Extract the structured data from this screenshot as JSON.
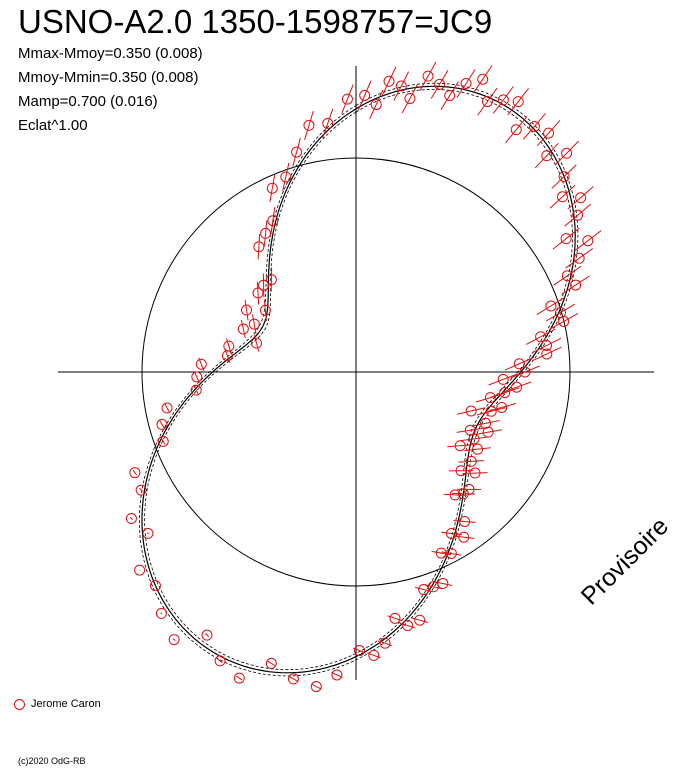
{
  "title": "USNO-A2.0 1350-1598757=JC9",
  "params": [
    "Mmax-Mmoy=0.350 (0.008)",
    "Mmoy-Mmin=0.350 (0.008)",
    "Mamp=0.700 (0.016)",
    "Eclat^1.00"
  ],
  "legend": {
    "label": "Jerome Caron",
    "color": "#e01010"
  },
  "watermark": "Provisoire",
  "copyright": "(c)2020 OdG-RB",
  "chart_data": {
    "type": "scatter",
    "projection": "polar",
    "reference_circle_radius": 1.0,
    "model_curve": {
      "description_ref": "params",
      "components": [
        {
          "harmonic": 1,
          "cos": -0.05,
          "sin": 0.05
        },
        {
          "harmonic": 2,
          "cos": 0.28,
          "sin": 0.35
        }
      ],
      "band": 0.015
    },
    "series": [
      {
        "name": "Jerome Caron",
        "color": "#e01010",
        "phase": [
          0.005,
          0.012,
          0.018,
          0.025,
          0.031,
          0.038,
          0.045,
          0.052,
          0.058,
          0.065,
          0.072,
          0.079,
          0.086,
          0.093,
          0.1,
          0.108,
          0.115,
          0.122,
          0.13,
          0.138,
          0.145,
          0.152,
          0.16,
          0.168,
          0.175,
          0.182,
          0.19,
          0.198,
          0.205,
          0.212,
          0.22,
          0.228,
          0.235,
          0.242,
          0.25,
          0.258,
          0.265,
          0.272,
          0.28,
          0.288,
          0.295,
          0.302,
          0.31,
          0.318,
          0.325,
          0.332,
          0.34,
          0.348,
          0.355,
          0.362,
          0.37,
          0.378,
          0.385,
          0.392,
          0.4,
          0.408,
          0.415,
          0.423,
          0.43,
          0.438,
          0.445,
          0.452,
          0.46,
          0.468,
          0.475,
          0.483,
          0.49,
          0.498,
          0.51,
          0.52,
          0.532,
          0.545,
          0.558,
          0.57,
          0.582,
          0.595,
          0.608,
          0.62,
          0.632,
          0.645,
          0.658,
          0.67,
          0.682,
          0.695,
          0.708,
          0.72,
          0.732,
          0.745,
          0.758,
          0.77,
          0.782,
          0.795,
          0.808,
          0.82,
          0.832,
          0.845,
          0.858,
          0.87,
          0.882,
          0.895,
          0.908,
          0.92,
          0.932,
          0.945,
          0.958,
          0.97,
          0.982,
          0.995
        ],
        "residual": [
          0.04,
          -0.03,
          0.06,
          0.02,
          -0.05,
          0.05,
          0.01,
          -0.04,
          0.03,
          0.07,
          -0.02,
          0.02,
          0.05,
          -0.06,
          0.01,
          0.04,
          -0.03,
          0.06,
          0.0,
          -0.04,
          0.05,
          0.02,
          -0.05,
          0.07,
          0.03,
          -0.02,
          0.04,
          -0.06,
          0.01,
          0.05,
          -0.03,
          0.03,
          0.06,
          -0.04,
          0.02,
          -0.05,
          0.04,
          0.01,
          -0.03,
          0.05,
          0.02,
          -0.06,
          0.03,
          0.06,
          -0.02,
          0.01,
          0.04,
          -0.05,
          0.02,
          0.05,
          -0.03,
          0.03,
          0.0,
          -0.05,
          0.04,
          0.06,
          -0.02,
          0.02,
          -0.04,
          0.05,
          0.01,
          -0.03,
          0.06,
          0.03,
          -0.05,
          0.02,
          0.04,
          -0.02,
          0.05,
          0.08,
          0.03,
          -0.04,
          0.06,
          0.02,
          -0.05,
          0.07,
          0.04,
          0.0,
          0.05,
          -0.03,
          0.06,
          0.02,
          0.08,
          -0.02,
          0.04,
          0.07,
          -0.01,
          0.05,
          0.09,
          0.02,
          0.06,
          -0.03,
          0.07,
          0.04,
          0.1,
          0.01,
          0.06,
          0.03,
          -0.02,
          0.08,
          0.05,
          0.02,
          0.09,
          0.04,
          0.06,
          0.1,
          0.03,
          0.07
        ],
        "error": 0.04
      }
    ],
    "axes": {
      "cross": true
    }
  }
}
